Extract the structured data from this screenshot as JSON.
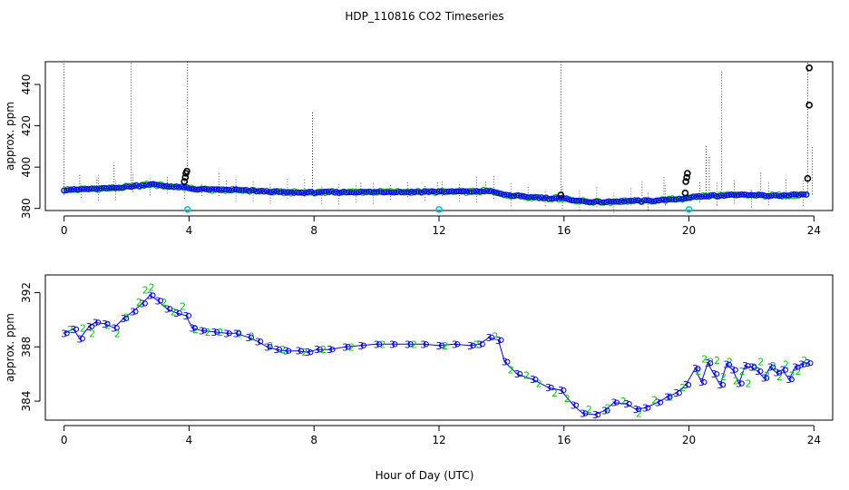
{
  "title": "HDP_110816  CO2 Timeseries",
  "xlabel": "Hour of Day (UTC)",
  "colors": {
    "blue": "#0000ff",
    "green": "#00cc00",
    "black": "#000000",
    "cyan": "#00cccc"
  },
  "chart_data": [
    {
      "type": "scatter",
      "name": "top",
      "ylabel": "approx. ppm",
      "xlim": [
        -0.6,
        24.6
      ],
      "ylim": [
        379,
        451
      ],
      "xticks": [
        0,
        4,
        8,
        12,
        16,
        20,
        24
      ],
      "yticks": [
        380,
        400,
        420,
        440
      ],
      "xtick_labels": [
        "0",
        "4",
        "8",
        "12",
        "16",
        "20",
        "24"
      ],
      "ytick_labels": [
        "380",
        "400",
        "420",
        "440"
      ],
      "baseline": [
        [
          0,
          389.0
        ],
        [
          0.5,
          389.2
        ],
        [
          1.0,
          389.5
        ],
        [
          1.5,
          389.8
        ],
        [
          2.0,
          390.4
        ],
        [
          2.5,
          391.2
        ],
        [
          2.75,
          391.7
        ],
        [
          3.0,
          391.3
        ],
        [
          3.5,
          390.5
        ],
        [
          3.9,
          390.2
        ],
        [
          4.0,
          389.6
        ],
        [
          4.5,
          389.2
        ],
        [
          5.0,
          389.0
        ],
        [
          5.5,
          388.9
        ],
        [
          6.0,
          388.6
        ],
        [
          6.5,
          388.2
        ],
        [
          7.0,
          387.8
        ],
        [
          7.5,
          387.7
        ],
        [
          8.0,
          387.8
        ],
        [
          9.0,
          387.9
        ],
        [
          10.0,
          388.0
        ],
        [
          11.0,
          388.0
        ],
        [
          12.0,
          388.1
        ],
        [
          13.0,
          388.1
        ],
        [
          13.6,
          388.5
        ],
        [
          14.0,
          386.9
        ],
        [
          14.5,
          386.0
        ],
        [
          15.0,
          385.5
        ],
        [
          15.5,
          385.0
        ],
        [
          16.0,
          384.8
        ],
        [
          16.5,
          383.6
        ],
        [
          17.0,
          383.1
        ],
        [
          17.5,
          383.2
        ],
        [
          18.0,
          383.6
        ],
        [
          18.5,
          383.5
        ],
        [
          19.0,
          383.9
        ],
        [
          19.5,
          384.4
        ],
        [
          19.8,
          384.8
        ],
        [
          20.0,
          385.3
        ],
        [
          20.5,
          386.0
        ],
        [
          21.0,
          386.3
        ],
        [
          21.5,
          386.5
        ],
        [
          22.0,
          386.4
        ],
        [
          22.5,
          386.2
        ],
        [
          23.0,
          386.3
        ],
        [
          23.5,
          386.6
        ],
        [
          23.8,
          386.8
        ]
      ],
      "outliers_black": [
        [
          3.85,
          393.0
        ],
        [
          3.88,
          395.0
        ],
        [
          3.9,
          397.0
        ],
        [
          3.93,
          398.0
        ],
        [
          15.9,
          386.5
        ],
        [
          19.88,
          387.5
        ],
        [
          19.9,
          393.0
        ],
        [
          19.93,
          395.0
        ],
        [
          19.95,
          397.0
        ],
        [
          23.8,
          394.5
        ],
        [
          23.85,
          430.0
        ],
        [
          23.85,
          448.0
        ]
      ],
      "outliers_cyan": [
        [
          3.95,
          379.5
        ],
        [
          12.0,
          379.5
        ],
        [
          20.0,
          379.5
        ]
      ],
      "spikes": [
        [
          0.0,
          451
        ],
        [
          2.15,
          451
        ],
        [
          3.95,
          451
        ],
        [
          15.9,
          451
        ],
        [
          23.8,
          451
        ],
        [
          1.6,
          402
        ],
        [
          2.85,
          394
        ],
        [
          7.95,
          427
        ],
        [
          11.95,
          393
        ],
        [
          21.05,
          447
        ],
        [
          20.55,
          411
        ],
        [
          20.65,
          405
        ],
        [
          0.5,
          397
        ],
        [
          1.05,
          395
        ],
        [
          3.3,
          396
        ],
        [
          5.2,
          394
        ],
        [
          9.5,
          393
        ],
        [
          13.5,
          393
        ],
        [
          18.5,
          393
        ],
        [
          19.2,
          395
        ],
        [
          22.3,
          398
        ],
        [
          23.95,
          410
        ]
      ]
    },
    {
      "type": "scatter",
      "name": "bottom",
      "ylabel": "approx. ppm",
      "xlim": [
        -0.6,
        24.6
      ],
      "ylim": [
        382.6,
        393.3
      ],
      "xticks": [
        0,
        4,
        8,
        12,
        16,
        20,
        24
      ],
      "yticks": [
        384,
        388,
        392
      ],
      "xtick_labels": [
        "0",
        "4",
        "8",
        "12",
        "16",
        "20",
        "24"
      ],
      "ytick_labels": [
        "384",
        "388",
        "392"
      ],
      "series_blue_label": "3",
      "series_green_label": "2",
      "series_blue": [
        [
          0,
          389.0
        ],
        [
          0.3,
          389.3
        ],
        [
          0.5,
          388.6
        ],
        [
          0.8,
          389.5
        ],
        [
          1.0,
          389.8
        ],
        [
          1.3,
          389.7
        ],
        [
          1.6,
          389.4
        ],
        [
          1.9,
          390.1
        ],
        [
          2.2,
          390.6
        ],
        [
          2.5,
          391.2
        ],
        [
          2.75,
          391.8
        ],
        [
          3.0,
          391.4
        ],
        [
          3.3,
          390.8
        ],
        [
          3.6,
          390.5
        ],
        [
          3.9,
          390.3
        ],
        [
          4.1,
          389.4
        ],
        [
          4.4,
          389.2
        ],
        [
          4.8,
          389.1
        ],
        [
          5.2,
          389.0
        ],
        [
          5.5,
          389.0
        ],
        [
          5.9,
          388.7
        ],
        [
          6.2,
          388.4
        ],
        [
          6.5,
          388.0
        ],
        [
          6.8,
          387.8
        ],
        [
          7.1,
          387.7
        ],
        [
          7.5,
          387.7
        ],
        [
          7.8,
          387.6
        ],
        [
          8.1,
          387.8
        ],
        [
          8.5,
          387.8
        ],
        [
          9.0,
          388.0
        ],
        [
          9.5,
          388.1
        ],
        [
          10.0,
          388.2
        ],
        [
          10.5,
          388.2
        ],
        [
          11.0,
          388.2
        ],
        [
          11.5,
          388.2
        ],
        [
          12.0,
          388.1
        ],
        [
          12.5,
          388.2
        ],
        [
          13.0,
          388.1
        ],
        [
          13.3,
          388.2
        ],
        [
          13.6,
          388.7
        ],
        [
          13.9,
          388.5
        ],
        [
          14.1,
          386.9
        ],
        [
          14.5,
          386.0
        ],
        [
          15.0,
          385.6
        ],
        [
          15.5,
          385.0
        ],
        [
          15.9,
          384.8
        ],
        [
          16.3,
          383.7
        ],
        [
          16.6,
          383.1
        ],
        [
          17.0,
          383.0
        ],
        [
          17.3,
          383.3
        ],
        [
          17.6,
          383.9
        ],
        [
          18.0,
          383.8
        ],
        [
          18.3,
          383.4
        ],
        [
          18.6,
          383.5
        ],
        [
          19.0,
          383.9
        ],
        [
          19.3,
          384.3
        ],
        [
          19.6,
          384.6
        ],
        [
          19.9,
          385.2
        ],
        [
          20.2,
          386.4
        ],
        [
          20.4,
          385.4
        ],
        [
          20.6,
          386.8
        ],
        [
          20.8,
          386.0
        ],
        [
          21.0,
          385.2
        ],
        [
          21.2,
          386.7
        ],
        [
          21.4,
          386.3
        ],
        [
          21.6,
          385.3
        ],
        [
          21.8,
          386.6
        ],
        [
          22.0,
          386.5
        ],
        [
          22.2,
          386.2
        ],
        [
          22.4,
          385.7
        ],
        [
          22.6,
          386.5
        ],
        [
          22.8,
          386.1
        ],
        [
          23.0,
          386.3
        ],
        [
          23.2,
          385.6
        ],
        [
          23.4,
          386.5
        ],
        [
          23.6,
          386.7
        ],
        [
          23.8,
          386.8
        ]
      ],
      "series_green": [
        [
          0.2,
          389.3
        ],
        [
          0.6,
          389.4
        ],
        [
          0.9,
          389.0
        ],
        [
          1.4,
          389.6
        ],
        [
          1.7,
          389.0
        ],
        [
          2.0,
          390.2
        ],
        [
          2.4,
          391.3
        ],
        [
          2.6,
          392.2
        ],
        [
          2.8,
          392.4
        ],
        [
          3.2,
          391.3
        ],
        [
          3.5,
          390.6
        ],
        [
          3.8,
          391.0
        ],
        [
          4.2,
          389.3
        ],
        [
          4.6,
          389.1
        ],
        [
          5.0,
          389.1
        ],
        [
          5.6,
          389.0
        ],
        [
          6.0,
          388.8
        ],
        [
          6.6,
          388.1
        ],
        [
          7.0,
          387.8
        ],
        [
          7.7,
          387.6
        ],
        [
          8.3,
          387.8
        ],
        [
          9.2,
          388.0
        ],
        [
          10.2,
          388.2
        ],
        [
          11.2,
          388.2
        ],
        [
          12.2,
          388.1
        ],
        [
          13.2,
          388.2
        ],
        [
          13.8,
          388.8
        ],
        [
          14.3,
          386.3
        ],
        [
          14.8,
          385.9
        ],
        [
          15.2,
          385.3
        ],
        [
          15.7,
          384.6
        ],
        [
          16.1,
          384.2
        ],
        [
          16.8,
          383.4
        ],
        [
          17.4,
          383.5
        ],
        [
          17.9,
          384.0
        ],
        [
          18.4,
          383.1
        ],
        [
          18.9,
          384.1
        ],
        [
          19.4,
          384.3
        ],
        [
          19.8,
          385.0
        ],
        [
          20.3,
          386.2
        ],
        [
          20.5,
          387.1
        ],
        [
          20.7,
          386.9
        ],
        [
          20.9,
          387.0
        ],
        [
          21.1,
          385.8
        ],
        [
          21.3,
          386.9
        ],
        [
          21.5,
          385.5
        ],
        [
          21.7,
          386.2
        ],
        [
          21.9,
          385.3
        ],
        [
          22.1,
          386.5
        ],
        [
          22.3,
          386.9
        ],
        [
          22.5,
          385.9
        ],
        [
          22.7,
          386.6
        ],
        [
          22.9,
          385.8
        ],
        [
          23.1,
          386.7
        ],
        [
          23.3,
          385.9
        ],
        [
          23.5,
          386.2
        ],
        [
          23.7,
          387.0
        ]
      ]
    }
  ]
}
